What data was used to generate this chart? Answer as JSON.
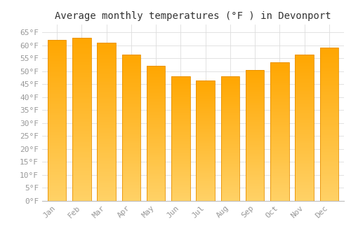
{
  "title": "Average monthly temperatures (°F ) in Devonport",
  "months": [
    "Jan",
    "Feb",
    "Mar",
    "Apr",
    "May",
    "Jun",
    "Jul",
    "Aug",
    "Sep",
    "Oct",
    "Nov",
    "Dec"
  ],
  "values": [
    62,
    63,
    61,
    56.5,
    52,
    48,
    46.5,
    48,
    50.5,
    53.5,
    56.5,
    59
  ],
  "bar_color_top": "#FFA500",
  "bar_color_bottom": "#FFD080",
  "bar_edge_color": "#E89000",
  "ylim": [
    0,
    68
  ],
  "yticks": [
    0,
    5,
    10,
    15,
    20,
    25,
    30,
    35,
    40,
    45,
    50,
    55,
    60,
    65
  ],
  "background_color": "#FFFFFF",
  "grid_color": "#DDDDDD",
  "title_fontsize": 10,
  "tick_fontsize": 8,
  "tick_color": "#999999",
  "title_color": "#333333"
}
